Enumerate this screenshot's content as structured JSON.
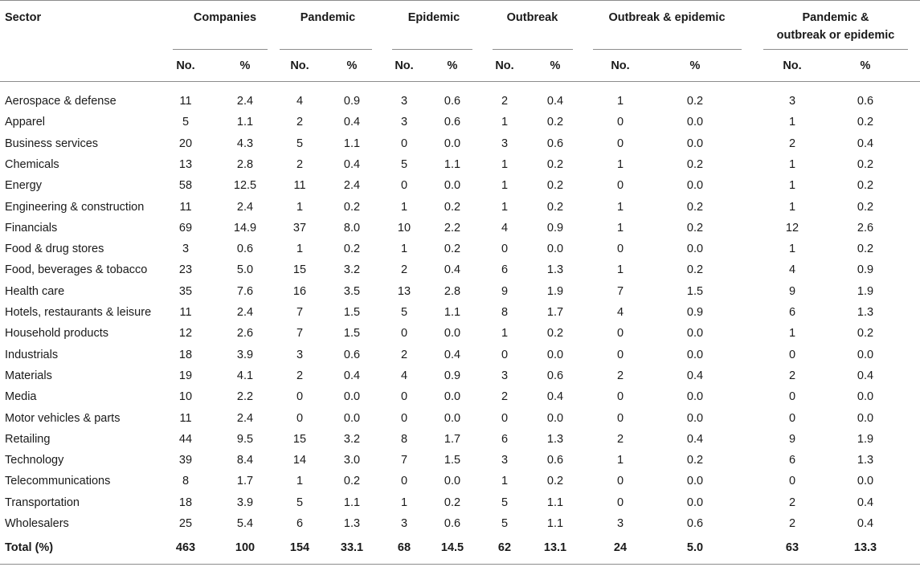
{
  "header": {
    "sector": "Sector",
    "groups": [
      {
        "label": "Companies"
      },
      {
        "label": "Pandemic"
      },
      {
        "label": "Epidemic"
      },
      {
        "label": "Outbreak"
      },
      {
        "label": "Outbreak & epidemic"
      },
      {
        "label_line1": "Pandemic &",
        "label_line2": "outbreak or epidemic"
      }
    ],
    "sub_no": "No.",
    "sub_pct": "%"
  },
  "rows": [
    {
      "sector": "Aerospace & defense",
      "values": [
        "11",
        "2.4",
        "4",
        "0.9",
        "3",
        "0.6",
        "2",
        "0.4",
        "1",
        "0.2",
        "3",
        "0.6"
      ]
    },
    {
      "sector": "Apparel",
      "values": [
        "5",
        "1.1",
        "2",
        "0.4",
        "3",
        "0.6",
        "1",
        "0.2",
        "0",
        "0.0",
        "1",
        "0.2"
      ]
    },
    {
      "sector": "Business services",
      "values": [
        "20",
        "4.3",
        "5",
        "1.1",
        "0",
        "0.0",
        "3",
        "0.6",
        "0",
        "0.0",
        "2",
        "0.4"
      ]
    },
    {
      "sector": "Chemicals",
      "values": [
        "13",
        "2.8",
        "2",
        "0.4",
        "5",
        "1.1",
        "1",
        "0.2",
        "1",
        "0.2",
        "1",
        "0.2"
      ]
    },
    {
      "sector": "Energy",
      "values": [
        "58",
        "12.5",
        "11",
        "2.4",
        "0",
        "0.0",
        "1",
        "0.2",
        "0",
        "0.0",
        "1",
        "0.2"
      ]
    },
    {
      "sector": "Engineering & construction",
      "values": [
        "11",
        "2.4",
        "1",
        "0.2",
        "1",
        "0.2",
        "1",
        "0.2",
        "1",
        "0.2",
        "1",
        "0.2"
      ]
    },
    {
      "sector": "Financials",
      "values": [
        "69",
        "14.9",
        "37",
        "8.0",
        "10",
        "2.2",
        "4",
        "0.9",
        "1",
        "0.2",
        "12",
        "2.6"
      ]
    },
    {
      "sector": "Food & drug stores",
      "values": [
        "3",
        "0.6",
        "1",
        "0.2",
        "1",
        "0.2",
        "0",
        "0.0",
        "0",
        "0.0",
        "1",
        "0.2"
      ]
    },
    {
      "sector": "Food, beverages & tobacco",
      "values": [
        "23",
        "5.0",
        "15",
        "3.2",
        "2",
        "0.4",
        "6",
        "1.3",
        "1",
        "0.2",
        "4",
        "0.9"
      ]
    },
    {
      "sector": "Health care",
      "values": [
        "35",
        "7.6",
        "16",
        "3.5",
        "13",
        "2.8",
        "9",
        "1.9",
        "7",
        "1.5",
        "9",
        "1.9"
      ]
    },
    {
      "sector": "Hotels, restaurants & leisure",
      "values": [
        "11",
        "2.4",
        "7",
        "1.5",
        "5",
        "1.1",
        "8",
        "1.7",
        "4",
        "0.9",
        "6",
        "1.3"
      ]
    },
    {
      "sector": "Household products",
      "values": [
        "12",
        "2.6",
        "7",
        "1.5",
        "0",
        "0.0",
        "1",
        "0.2",
        "0",
        "0.0",
        "1",
        "0.2"
      ]
    },
    {
      "sector": "Industrials",
      "values": [
        "18",
        "3.9",
        "3",
        "0.6",
        "2",
        "0.4",
        "0",
        "0.0",
        "0",
        "0.0",
        "0",
        "0.0"
      ]
    },
    {
      "sector": "Materials",
      "values": [
        "19",
        "4.1",
        "2",
        "0.4",
        "4",
        "0.9",
        "3",
        "0.6",
        "2",
        "0.4",
        "2",
        "0.4"
      ]
    },
    {
      "sector": "Media",
      "values": [
        "10",
        "2.2",
        "0",
        "0.0",
        "0",
        "0.0",
        "2",
        "0.4",
        "0",
        "0.0",
        "0",
        "0.0"
      ]
    },
    {
      "sector": "Motor vehicles & parts",
      "values": [
        "11",
        "2.4",
        "0",
        "0.0",
        "0",
        "0.0",
        "0",
        "0.0",
        "0",
        "0.0",
        "0",
        "0.0"
      ]
    },
    {
      "sector": "Retailing",
      "values": [
        "44",
        "9.5",
        "15",
        "3.2",
        "8",
        "1.7",
        "6",
        "1.3",
        "2",
        "0.4",
        "9",
        "1.9"
      ]
    },
    {
      "sector": "Technology",
      "values": [
        "39",
        "8.4",
        "14",
        "3.0",
        "7",
        "1.5",
        "3",
        "0.6",
        "1",
        "0.2",
        "6",
        "1.3"
      ]
    },
    {
      "sector": "Telecommunications",
      "values": [
        "8",
        "1.7",
        "1",
        "0.2",
        "0",
        "0.0",
        "1",
        "0.2",
        "0",
        "0.0",
        "0",
        "0.0"
      ]
    },
    {
      "sector": "Transportation",
      "values": [
        "18",
        "3.9",
        "5",
        "1.1",
        "1",
        "0.2",
        "5",
        "1.1",
        "0",
        "0.0",
        "2",
        "0.4"
      ]
    },
    {
      "sector": "Wholesalers",
      "values": [
        "25",
        "5.4",
        "6",
        "1.3",
        "3",
        "0.6",
        "5",
        "1.1",
        "3",
        "0.6",
        "2",
        "0.4"
      ]
    }
  ],
  "total": {
    "sector": "Total (%)",
    "values": [
      "463",
      "100",
      "154",
      "33.1",
      "68",
      "14.5",
      "62",
      "13.1",
      "24",
      "5.0",
      "63",
      "13.3"
    ]
  }
}
